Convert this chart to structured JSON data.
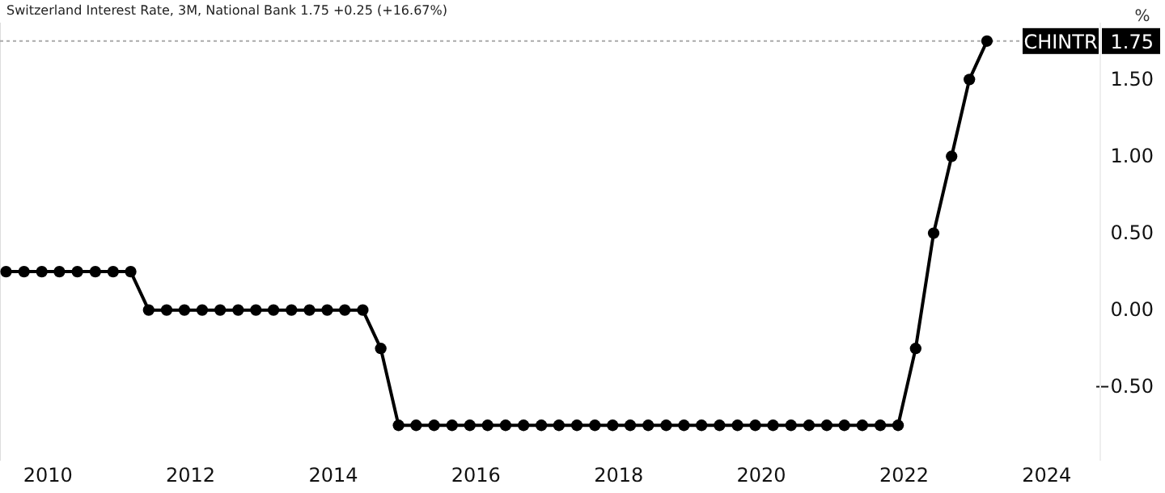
{
  "chart_data": {
    "type": "line",
    "title": "Switzerland Interest Rate, 3M, National Bank  1.75  +0.25 (+16.67%)",
    "ylabel": "%",
    "x": [
      "2009-06-01",
      "2009-09-01",
      "2009-12-01",
      "2010-03-01",
      "2010-06-01",
      "2010-09-01",
      "2010-12-01",
      "2011-03-01",
      "2011-06-01",
      "2011-09-01",
      "2011-12-01",
      "2012-03-01",
      "2012-06-01",
      "2012-09-01",
      "2012-12-01",
      "2013-03-01",
      "2013-06-01",
      "2013-09-01",
      "2013-12-01",
      "2014-03-01",
      "2014-06-01",
      "2014-09-01",
      "2014-12-01",
      "2015-03-01",
      "2015-06-01",
      "2015-09-01",
      "2015-12-01",
      "2016-03-01",
      "2016-06-01",
      "2016-09-01",
      "2016-12-01",
      "2017-03-01",
      "2017-06-01",
      "2017-09-01",
      "2017-12-01",
      "2018-03-01",
      "2018-06-01",
      "2018-09-01",
      "2018-12-01",
      "2019-03-01",
      "2019-06-01",
      "2019-09-01",
      "2019-12-01",
      "2020-03-01",
      "2020-06-01",
      "2020-09-01",
      "2020-12-01",
      "2021-03-01",
      "2021-06-01",
      "2021-09-01",
      "2021-12-01",
      "2022-03-01",
      "2022-06-01",
      "2022-09-01",
      "2022-12-01",
      "2023-03-01"
    ],
    "series": [
      {
        "color": "#000000",
        "values": [
          0.25,
          0.25,
          0.25,
          0.25,
          0.25,
          0.25,
          0.25,
          0.25,
          0,
          0,
          0,
          0,
          0,
          0,
          0,
          0,
          0,
          0,
          0,
          0,
          0,
          -0.25,
          -0.75,
          -0.75,
          -0.75,
          -0.75,
          -0.75,
          -0.75,
          -0.75,
          -0.75,
          -0.75,
          -0.75,
          -0.75,
          -0.75,
          -0.75,
          -0.75,
          -0.75,
          -0.75,
          -0.75,
          -0.75,
          -0.75,
          -0.75,
          -0.75,
          -0.75,
          -0.75,
          -0.75,
          -0.75,
          -0.75,
          -0.75,
          -0.75,
          -0.75,
          -0.25,
          0.5,
          1.0,
          1.5,
          1.75
        ]
      }
    ],
    "xlim": [
      "2009-05-01",
      "2024-10-01"
    ],
    "xticks": [
      {
        "value": "2010-01-01",
        "label": "2010"
      },
      {
        "value": "2012-01-01",
        "label": "2012"
      },
      {
        "value": "2014-01-01",
        "label": "2014"
      },
      {
        "value": "2016-01-01",
        "label": "2016"
      },
      {
        "value": "2018-01-01",
        "label": "2018"
      },
      {
        "value": "2020-01-01",
        "label": "2020"
      },
      {
        "value": "2022-01-01",
        "label": "2022"
      },
      {
        "value": "2024-01-01",
        "label": "2024"
      }
    ],
    "ylim": [
      -0.98,
      1.87
    ],
    "yticks": [
      {
        "value": -0.5,
        "label": "−0.50"
      },
      {
        "value": 0,
        "label": "0.00"
      },
      {
        "value": 0.5,
        "label": "0.50"
      },
      {
        "value": 1,
        "label": "1.00"
      },
      {
        "value": 1.5,
        "label": "1.50"
      }
    ],
    "ref_lines": [
      {
        "axis": "y",
        "value": 1.75,
        "label": "CHINTR",
        "color": "#aaaaaa",
        "line_style": "dotted"
      }
    ],
    "annotations": [
      "1.75"
    ],
    "marker": "circle",
    "line_style": "solid",
    "grid": false
  }
}
